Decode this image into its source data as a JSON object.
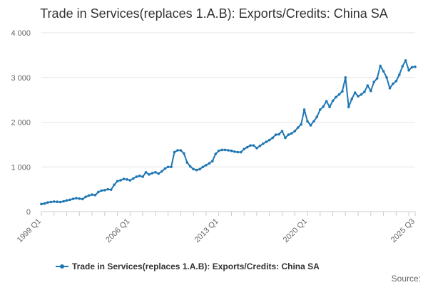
{
  "chart_data": {
    "type": "line",
    "title": "Trade in Services(replaces 1.A.B): Exports/Credits: China SA",
    "xlabel": "",
    "ylabel": "",
    "ylim": [
      0,
      4000
    ],
    "y_ticks": [
      {
        "value": 0,
        "label": "0"
      },
      {
        "value": 1000,
        "label": "1 000"
      },
      {
        "value": 2000,
        "label": "2 000"
      },
      {
        "value": 3000,
        "label": "3 000"
      },
      {
        "value": 4000,
        "label": "4 000"
      }
    ],
    "x_range": [
      "1999 Q1",
      "2025 Q3"
    ],
    "x_tick_labels": [
      "1999 Q1",
      "2006 Q1",
      "2013 Q1",
      "2020 Q1",
      "2025 Q3"
    ],
    "grid": true,
    "legend_position": "bottom",
    "series": [
      {
        "name": "Trade in Services(replaces 1.A.B): Exports/Credits: China SA",
        "color": "#1f77b4",
        "values": [
          170,
          180,
          205,
          215,
          225,
          220,
          215,
          230,
          250,
          265,
          285,
          300,
          290,
          280,
          330,
          360,
          380,
          370,
          440,
          470,
          480,
          500,
          490,
          600,
          680,
          700,
          730,
          720,
          700,
          740,
          780,
          800,
          780,
          880,
          830,
          860,
          880,
          850,
          900,
          960,
          1000,
          1000,
          1330,
          1370,
          1370,
          1300,
          1100,
          1010,
          950,
          930,
          950,
          1000,
          1040,
          1080,
          1130,
          1290,
          1360,
          1380,
          1380,
          1370,
          1360,
          1340,
          1330,
          1330,
          1400,
          1440,
          1480,
          1480,
          1420,
          1470,
          1520,
          1560,
          1600,
          1650,
          1720,
          1730,
          1800,
          1650,
          1720,
          1750,
          1800,
          1880,
          1950,
          2280,
          2020,
          1930,
          2020,
          2120,
          2280,
          2350,
          2470,
          2340,
          2480,
          2560,
          2620,
          2690,
          3000,
          2340,
          2520,
          2660,
          2580,
          2620,
          2680,
          2820,
          2700,
          2900,
          2980,
          3260,
          3140,
          3000,
          2760,
          2860,
          2920,
          3060,
          3250,
          3380,
          3160,
          3230,
          3240
        ]
      }
    ]
  },
  "legend": {
    "label": "Trade in Services(replaces 1.A.B): Exports/Credits: China SA"
  },
  "source_label": "Source:"
}
